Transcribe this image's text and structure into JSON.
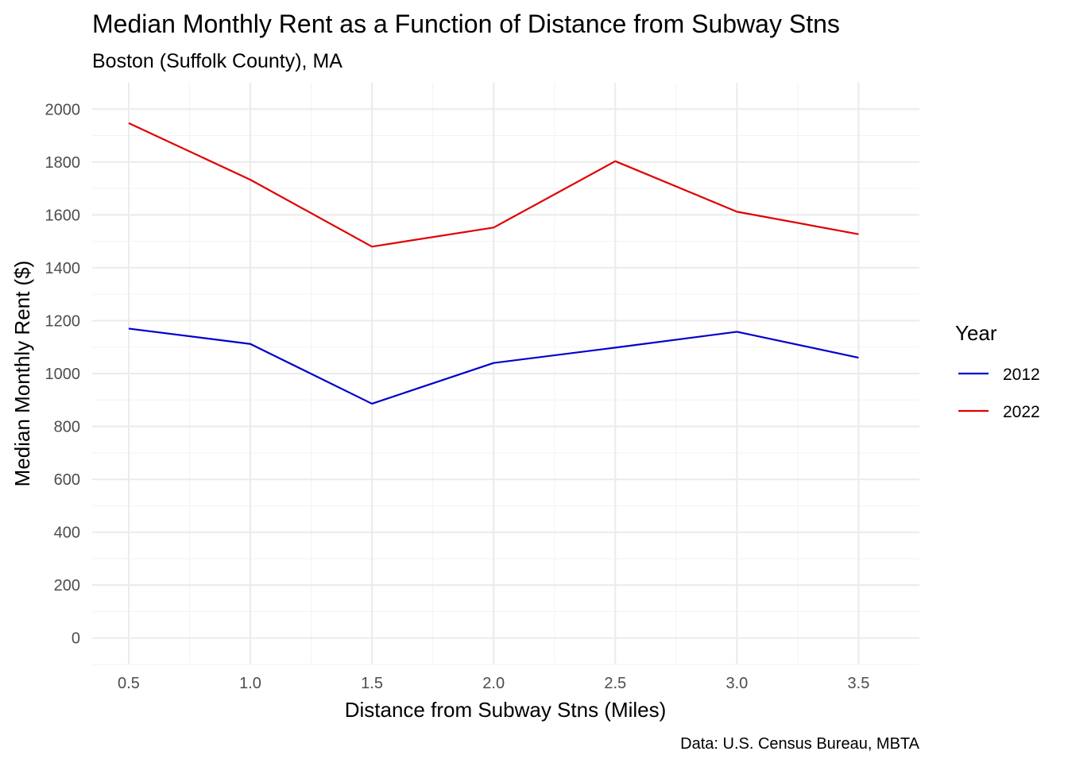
{
  "chart_data": {
    "type": "line",
    "title": "Median Monthly Rent as a Function of Distance from Subway Stns",
    "subtitle": "Boston (Suffolk County), MA",
    "xlabel": "Distance from Subway Stns (Miles)",
    "ylabel": "Median Monthly Rent ($)",
    "caption": "Data: U.S. Census Bureau, MBTA",
    "x": [
      0.5,
      1.0,
      1.5,
      2.0,
      2.5,
      3.0,
      3.5
    ],
    "x_tick_labels": [
      "0.5",
      "1.0",
      "1.5",
      "2.0",
      "2.5",
      "3.0",
      "3.5"
    ],
    "y_tick_labels": [
      "0",
      "200",
      "400",
      "600",
      "800",
      "1000",
      "1200",
      "1400",
      "1600",
      "1800",
      "2000"
    ],
    "xlim": [
      0.35,
      3.75
    ],
    "ylim": [
      -100,
      2100
    ],
    "grid": true,
    "legend": {
      "title": "Year",
      "position": "right"
    },
    "series": [
      {
        "name": "2012",
        "color": "#0000cc",
        "values": [
          1170,
          1112,
          886,
          1040,
          1098,
          1158,
          1060
        ]
      },
      {
        "name": "2022",
        "color": "#e00000",
        "values": [
          1947,
          1733,
          1480,
          1552,
          1803,
          1612,
          1527
        ]
      }
    ]
  }
}
